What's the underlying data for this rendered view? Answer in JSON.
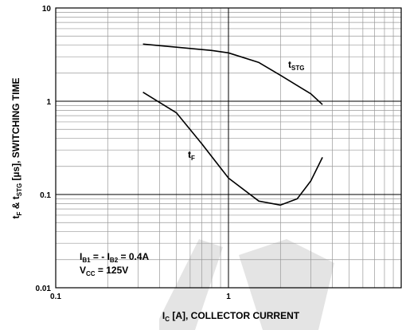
{
  "chart_data": {
    "type": "line",
    "x_label": [
      "I",
      "C",
      " [A], COLLECTOR CURRENT"
    ],
    "y_label": [
      "t",
      "F",
      " & t",
      "STG",
      " [µs], SWITCHING TIME"
    ],
    "xlog": true,
    "ylog": true,
    "grid": true,
    "xlim": [
      0.1,
      10
    ],
    "ylim": [
      0.01,
      10
    ],
    "xticks": [
      0.1,
      1
    ],
    "yticks": [
      0.01,
      0.1,
      1,
      10
    ],
    "x_minor_ticks": [
      0.2,
      0.3,
      0.4,
      0.5,
      0.6,
      0.7,
      0.8,
      0.9,
      2,
      3,
      4,
      5,
      6,
      7,
      8,
      9
    ],
    "y_minor_ticks": [
      0.02,
      0.03,
      0.04,
      0.05,
      0.06,
      0.07,
      0.08,
      0.09,
      0.2,
      0.3,
      0.4,
      0.5,
      0.6,
      0.7,
      0.8,
      0.9,
      2,
      3,
      4,
      5,
      6,
      7,
      8,
      9
    ],
    "series": [
      {
        "name": [
          "t",
          "STG"
        ],
        "color": "#000000",
        "x": [
          0.32,
          0.5,
          0.8,
          1,
          1.5,
          2,
          3,
          3.5
        ],
        "values": [
          4.1,
          3.8,
          3.5,
          3.3,
          2.6,
          1.9,
          1.2,
          0.92
        ]
      },
      {
        "name": [
          "t",
          "F"
        ],
        "color": "#000000",
        "x": [
          0.32,
          0.5,
          0.7,
          1,
          1.5,
          2,
          2.5,
          3,
          3.5
        ],
        "values": [
          1.25,
          0.75,
          0.35,
          0.15,
          0.085,
          0.077,
          0.09,
          0.14,
          0.25
        ]
      }
    ],
    "conditions": [
      [
        "I",
        "B1",
        " = - I",
        "B2",
        " = 0.4A"
      ],
      [
        "V",
        "CC",
        " = 125V"
      ]
    ]
  }
}
